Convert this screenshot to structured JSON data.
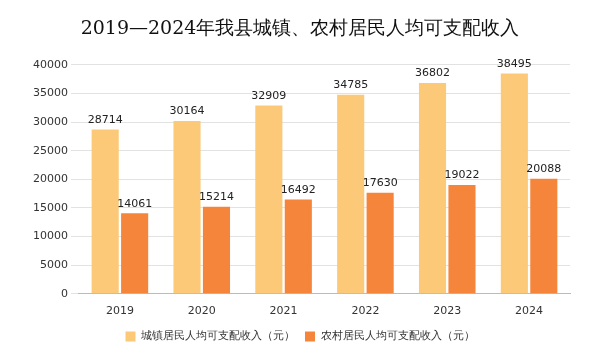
{
  "chart_data": {
    "type": "bar",
    "title": "2019—2024年我县城镇、农村居民人均可支配收入",
    "categories": [
      "2019",
      "2020",
      "2021",
      "2022",
      "2023",
      "2024"
    ],
    "series": [
      {
        "name": "城镇居民人均可支配收入（元）",
        "color": "#fbc978",
        "values": [
          28714,
          30164,
          32909,
          34785,
          36802,
          38495
        ]
      },
      {
        "name": "农村居民人均可支配收入（元）",
        "color": "#f5853a",
        "values": [
          14061,
          15214,
          16492,
          17630,
          19022,
          20088
        ]
      }
    ],
    "ylim": [
      0,
      40000
    ],
    "yticks": [
      0,
      5000,
      10000,
      15000,
      20000,
      25000,
      30000,
      35000,
      40000
    ],
    "grid": true,
    "legend": "bottom",
    "data_labels": true
  }
}
